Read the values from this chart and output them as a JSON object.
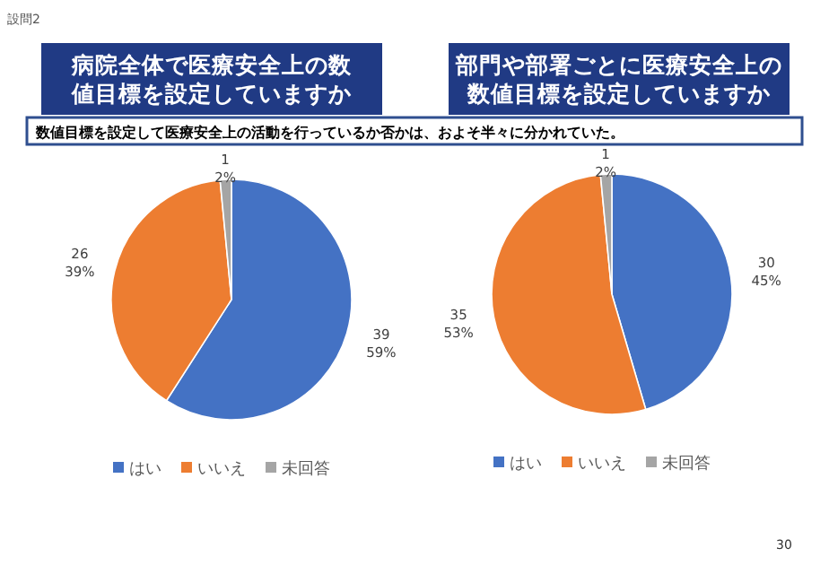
{
  "chart_data": [
    {
      "type": "pie",
      "title": "病院全体で医療安全上の数値目標を設定していますか",
      "categories": [
        "はい",
        "いいえ",
        "未回答"
      ],
      "values": [
        39,
        26,
        1
      ],
      "colors": [
        "#4472c4",
        "#ed7d31",
        "#a5a5a5"
      ],
      "value_labels": [
        "39\n59%",
        "26\n39%",
        "1\n2%"
      ],
      "legend": "bottom",
      "annotations": [
        "設問2",
        "数値目標を設定して医療安全上の活動を行っているか否かは、およそ半々に分かれていた。"
      ]
    },
    {
      "type": "pie",
      "title": "部門や部署ごとに医療安全上の数値目標を設定していますか",
      "categories": [
        "はい",
        "いいえ",
        "未回答"
      ],
      "values": [
        30,
        35,
        1
      ],
      "colors": [
        "#4472c4",
        "#ed7d31",
        "#a5a5a5"
      ],
      "value_labels": [
        "30\n45%",
        "35\n53%",
        "1\n2%"
      ],
      "legend": "bottom",
      "annotations": [
        "30"
      ]
    }
  ]
}
